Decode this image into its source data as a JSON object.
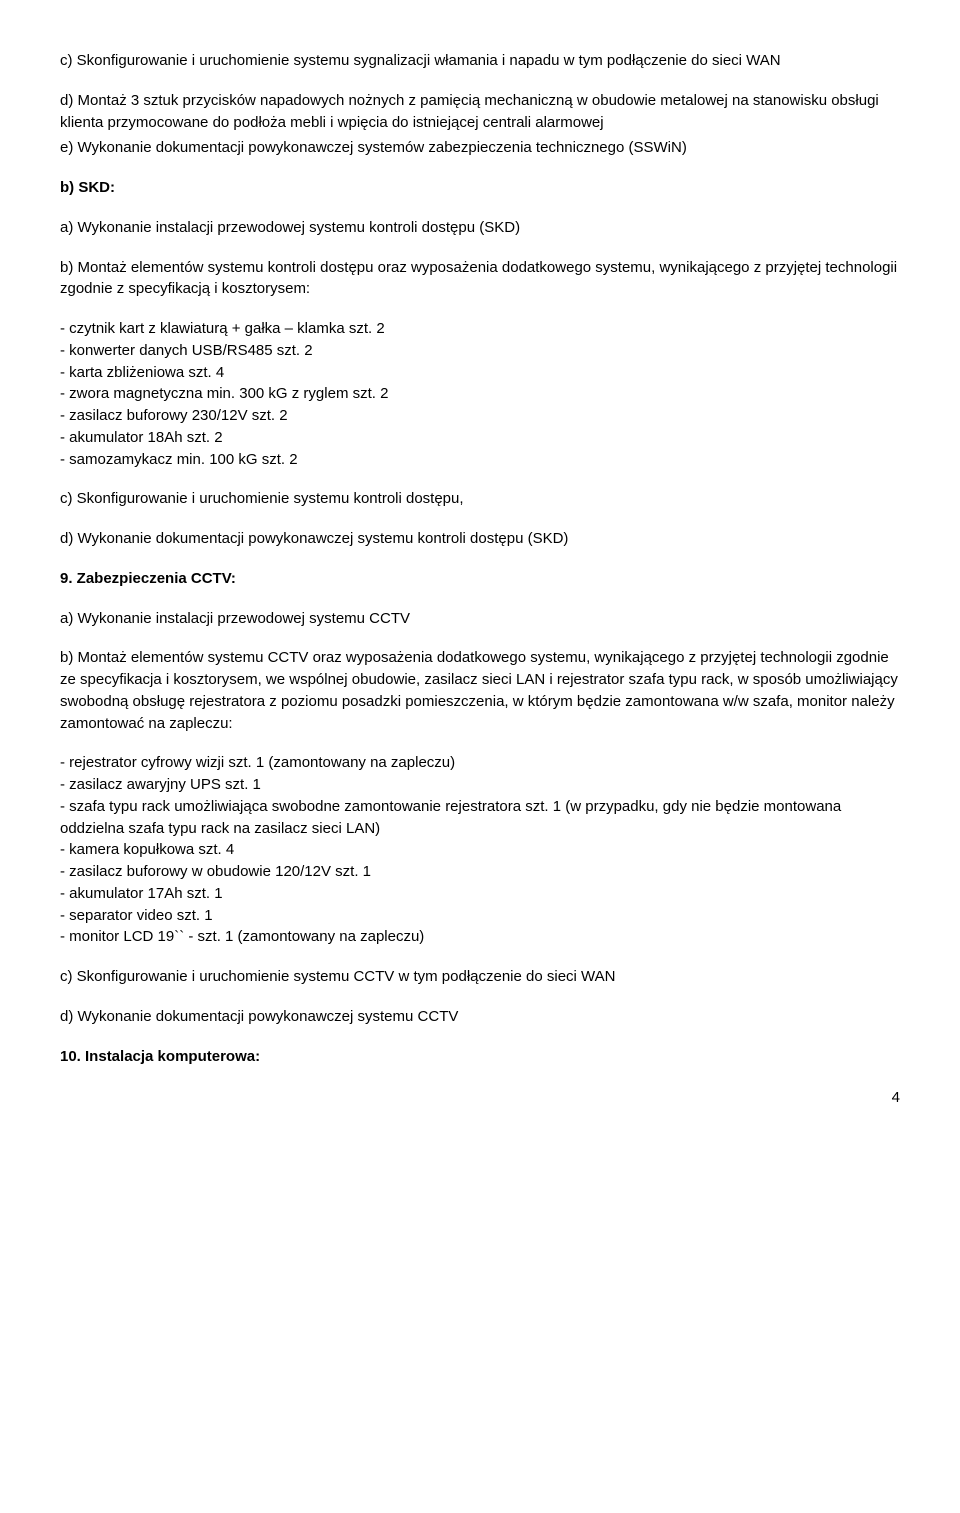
{
  "p1": "c) Skonfigurowanie i uruchomienie systemu sygnalizacji włamania i napadu w tym podłączenie do sieci WAN",
  "p2": "d) Montaż 3 sztuk przycisków napadowych nożnych z pamięcią mechaniczną w obudowie metalowej na stanowisku obsługi klienta przymocowane do podłoża mebli i wpięcia do istniejącej centrali alarmowej",
  "p3": "e) Wykonanie dokumentacji powykonawczej systemów zabezpieczenia technicznego (SSWiN)",
  "h1": "b) SKD:",
  "p4": "a) Wykonanie instalacji przewodowej systemu kontroli dostępu (SKD)",
  "p5": "b) Montaż elementów systemu kontroli dostępu oraz wyposażenia dodatkowego systemu, wynikającego z przyjętej technologii zgodnie z specyfikacją i kosztorysem:",
  "list1": [
    "- czytnik kart z klawiaturą + gałka – klamka szt. 2",
    "- konwerter danych USB/RS485 szt. 2",
    "- karta zbliżeniowa szt. 4",
    "- zwora magnetyczna min. 300 kG z ryglem szt. 2",
    "- zasilacz buforowy 230/12V szt. 2",
    "- akumulator 18Ah szt. 2",
    "- samozamykacz min. 100 kG szt. 2"
  ],
  "p6": "c) Skonfigurowanie i uruchomienie systemu kontroli dostępu,",
  "p7": "d) Wykonanie dokumentacji powykonawczej systemu kontroli dostępu (SKD)",
  "h2": "9. Zabezpieczenia CCTV:",
  "p8": "a) Wykonanie instalacji przewodowej systemu CCTV",
  "p9": "b) Montaż elementów systemu CCTV oraz wyposażenia dodatkowego systemu, wynikającego z przyjętej technologii zgodnie ze specyfikacja i kosztorysem, we wspólnej obudowie, zasilacz sieci LAN i rejestrator szafa typu rack, w sposób umożliwiający swobodną obsługę rejestratora z poziomu posadzki pomieszczenia, w którym będzie zamontowana w/w szafa, monitor należy zamontować na zapleczu:",
  "list2": [
    "- rejestrator cyfrowy wizji szt. 1 (zamontowany na zapleczu)",
    "- zasilacz awaryjny UPS szt. 1",
    "- szafa typu rack umożliwiająca swobodne zamontowanie rejestratora szt. 1 (w przypadku, gdy nie będzie montowana oddzielna szafa typu rack na zasilacz sieci LAN)",
    "- kamera kopułkowa szt. 4",
    "- zasilacz buforowy w obudowie 120/12V szt. 1",
    "- akumulator 17Ah szt. 1",
    "- separator video szt. 1",
    "- monitor LCD 19`` - szt. 1 (zamontowany na zapleczu)"
  ],
  "p10": "c) Skonfigurowanie i uruchomienie systemu CCTV w tym podłączenie do sieci WAN",
  "p11": "d) Wykonanie dokumentacji powykonawczej systemu CCTV",
  "h3": "10. Instalacja komputerowa:",
  "page": "4"
}
